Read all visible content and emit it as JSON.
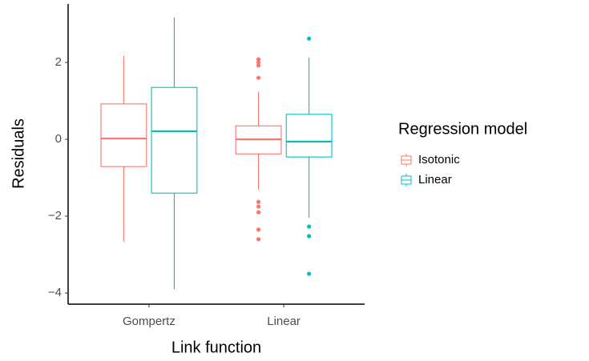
{
  "chart_data": {
    "type": "box",
    "x_label": "Link function",
    "y_label": "Residuals",
    "categories": [
      "Gompertz",
      "Linear"
    ],
    "legend_title": "Regression model",
    "legend_position": "right",
    "ylim": [
      -4.29,
      3.52
    ],
    "yticks": [
      {
        "value": -4,
        "label": "−4"
      },
      {
        "value": -2,
        "label": "−2"
      },
      0,
      2
    ],
    "series": [
      {
        "name": "Isotonic",
        "color": "#F8766D",
        "boxes": [
          {
            "min": -2.65,
            "q1": -0.71,
            "median": 0.02,
            "q3": 0.92,
            "max": 2.17,
            "outliers": []
          },
          {
            "min": -1.31,
            "q1": -0.38,
            "median": 0.0,
            "q3": 0.35,
            "max": 1.23,
            "outliers": [
              2.08,
              2.0,
              1.92,
              1.6,
              -1.63,
              -1.75,
              -1.9,
              -2.35,
              -2.6
            ]
          }
        ]
      },
      {
        "name": "Linear",
        "color": "#00BFC4",
        "boxes": [
          {
            "min": -3.9,
            "q1": -1.4,
            "median": 0.21,
            "q3": 1.35,
            "max": 3.17,
            "outliers": []
          },
          {
            "min": -2.04,
            "q1": -0.46,
            "median": -0.06,
            "q3": 0.65,
            "max": 2.13,
            "outliers": [
              2.62,
              -2.27,
              -2.52,
              -3.5
            ]
          }
        ]
      }
    ]
  }
}
